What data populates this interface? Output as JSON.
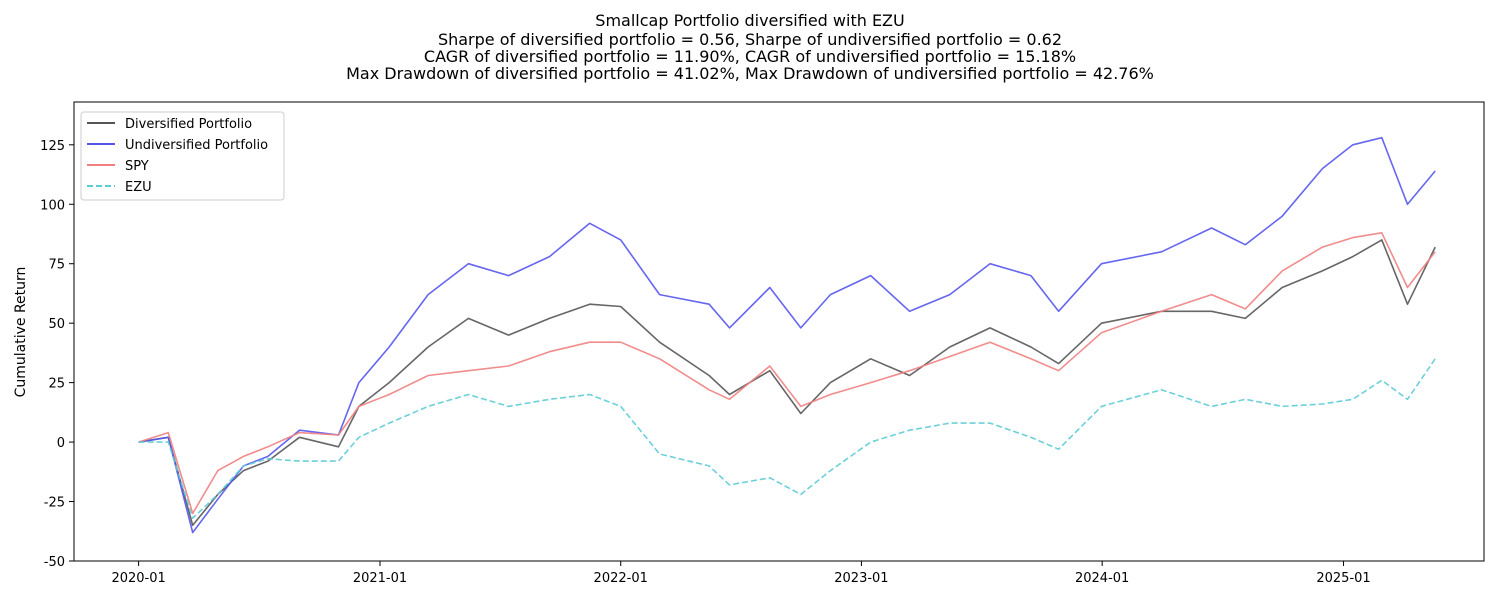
{
  "chart_data": {
    "type": "line",
    "title_lines": [
      "Smallcap Portfolio diversified with EZU",
      "Sharpe of diversified portfolio = 0.56, Sharpe of undiversified portfolio = 0.62",
      "CAGR of diversified portfolio = 11.90%, CAGR of undiversified portfolio = 15.18%",
      "Max Drawdown of diversified portfolio = 41.02%, Max Drawdown of undiversified portfolio = 42.76%"
    ],
    "xlabel": "",
    "ylabel": "Cumulative Return",
    "xlim": [
      "2019-09-25",
      "2025-08-02"
    ],
    "ylim": [
      -50,
      143
    ],
    "x_ticks": [
      "2020-01",
      "2021-01",
      "2022-01",
      "2023-01",
      "2024-01",
      "2025-01"
    ],
    "y_ticks": [
      -50,
      -25,
      0,
      25,
      50,
      75,
      100,
      125
    ],
    "grid": false,
    "legend_position": "upper-left",
    "x": [
      "2020-01-01",
      "2020-02-15",
      "2020-03-23",
      "2020-04-30",
      "2020-06-08",
      "2020-07-15",
      "2020-09-01",
      "2020-10-30",
      "2020-11-30",
      "2021-01-15",
      "2021-03-15",
      "2021-05-15",
      "2021-07-15",
      "2021-09-15",
      "2021-11-15",
      "2022-01-01",
      "2022-03-01",
      "2022-05-15",
      "2022-06-15",
      "2022-08-15",
      "2022-10-01",
      "2022-11-15",
      "2023-01-15",
      "2023-03-15",
      "2023-05-15",
      "2023-07-15",
      "2023-09-15",
      "2023-10-27",
      "2023-12-31",
      "2024-03-31",
      "2024-06-15",
      "2024-08-05",
      "2024-09-30",
      "2024-11-30",
      "2025-01-15",
      "2025-02-28",
      "2025-04-08",
      "2025-05-20"
    ],
    "series": [
      {
        "name": "Diversified Portfolio",
        "color": "#555555",
        "dash": "solid",
        "values": [
          0,
          2,
          -35,
          -22,
          -12,
          -8,
          2,
          -2,
          15,
          25,
          40,
          52,
          45,
          52,
          58,
          57,
          42,
          28,
          20,
          30,
          12,
          25,
          35,
          28,
          40,
          48,
          40,
          33,
          50,
          55,
          55,
          52,
          65,
          72,
          78,
          85,
          58,
          82
        ]
      },
      {
        "name": "Undiversified Portfolio",
        "color": "#5555ee",
        "dash": "solid",
        "values": [
          0,
          2,
          -38,
          -24,
          -10,
          -6,
          5,
          3,
          25,
          40,
          62,
          75,
          70,
          78,
          92,
          85,
          62,
          58,
          48,
          65,
          48,
          62,
          70,
          55,
          62,
          75,
          70,
          55,
          75,
          80,
          90,
          83,
          95,
          115,
          125,
          128,
          100,
          114
        ]
      },
      {
        "name": "SPY",
        "color": "#f08080",
        "dash": "solid",
        "values": [
          0,
          4,
          -30,
          -12,
          -6,
          -2,
          4,
          3,
          15,
          20,
          28,
          30,
          32,
          38,
          42,
          42,
          35,
          22,
          18,
          32,
          15,
          20,
          25,
          30,
          36,
          42,
          35,
          30,
          46,
          55,
          62,
          56,
          72,
          82,
          86,
          88,
          65,
          80
        ]
      },
      {
        "name": "EZU",
        "color": "#5ccbd6",
        "dash": "dashed",
        "values": [
          0,
          0,
          -32,
          -22,
          -10,
          -7,
          -8,
          -8,
          2,
          8,
          15,
          20,
          15,
          18,
          20,
          15,
          -5,
          -10,
          -18,
          -15,
          -22,
          -12,
          0,
          5,
          8,
          8,
          2,
          -3,
          15,
          22,
          15,
          18,
          15,
          16,
          18,
          26,
          18,
          35
        ]
      }
    ]
  }
}
